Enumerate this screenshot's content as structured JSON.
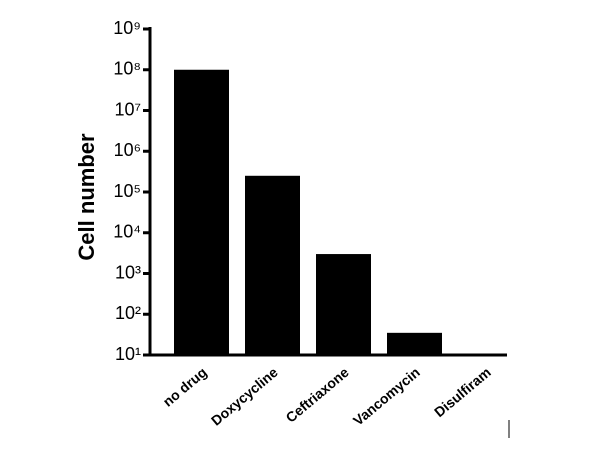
{
  "chart_data": {
    "type": "bar",
    "y_label": "Cell number",
    "categories": [
      "no drug",
      "Doxycycline",
      "Ceftriaxone",
      "Vancomycin",
      "Disulfiram"
    ],
    "values": [
      100000000,
      250000,
      3000,
      35,
      10
    ],
    "color": "#000000",
    "log_scale": true,
    "ylim": [
      10,
      1000000000
    ],
    "yticks": [
      {
        "value": 10,
        "label": "10¹"
      },
      {
        "value": 100,
        "label": "10²"
      },
      {
        "value": 1000,
        "label": "10³"
      },
      {
        "value": 10000,
        "label": "10⁴"
      },
      {
        "value": 100000,
        "label": "10⁵"
      },
      {
        "value": 1000000,
        "label": "10⁶"
      },
      {
        "value": 10000000,
        "label": "10⁷"
      },
      {
        "value": 100000000,
        "label": "10⁸"
      },
      {
        "value": 1000000000,
        "label": "10⁹"
      }
    ],
    "grid": false
  }
}
